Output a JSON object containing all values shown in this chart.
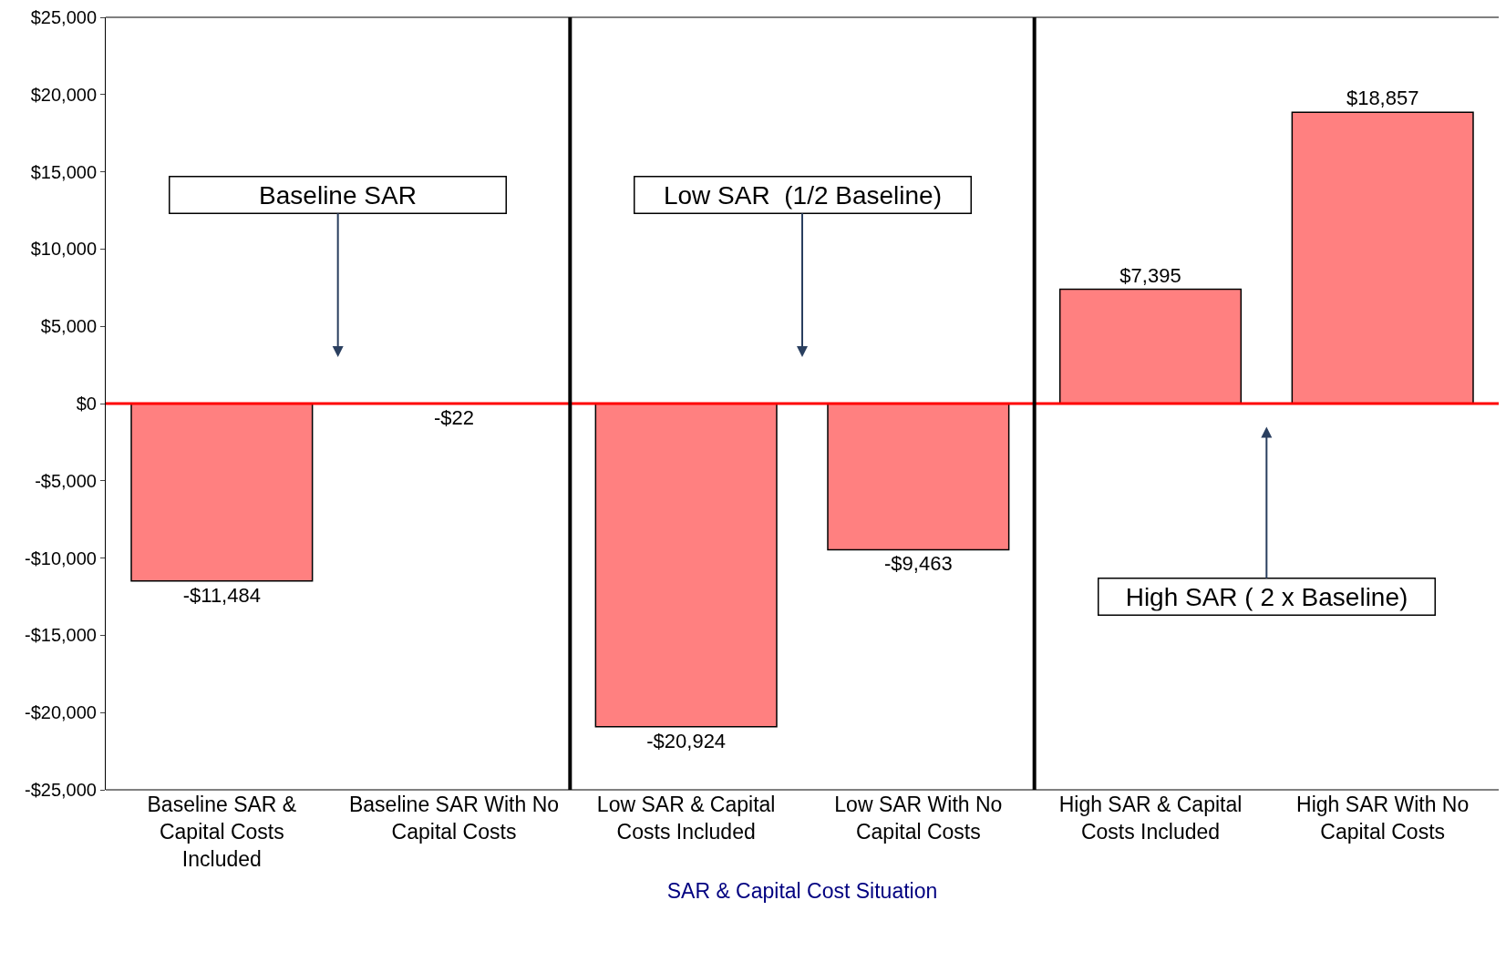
{
  "chart_data": {
    "type": "bar",
    "categories": [
      "Baseline SAR & Capital Costs Included",
      "Baseline SAR With No Capital Costs",
      "Low SAR & Capital Costs Included",
      "Low SAR With No Capital Costs",
      "High SAR & Capital Costs Included",
      "High SAR With No Capital Costs"
    ],
    "values": [
      -11484,
      -22,
      -20924,
      -9463,
      7395,
      18857
    ],
    "value_labels": [
      "-$11,484",
      "-$22",
      "-$20,924",
      "-$9,463",
      "$7,395",
      "$18,857"
    ],
    "color": "#ff8080",
    "xlabel": "SAR & Capital Cost Situation",
    "ylim": [
      -25000,
      25000
    ],
    "yticks": [
      {
        "value": -25000,
        "label": "-$25,000"
      },
      {
        "value": -20000,
        "label": "-$20,000"
      },
      {
        "value": -15000,
        "label": "-$15,000"
      },
      {
        "value": -10000,
        "label": "-$10,000"
      },
      {
        "value": -5000,
        "label": "-$5,000"
      },
      {
        "value": 0,
        "label": "$0"
      },
      {
        "value": 5000,
        "label": "$5,000"
      },
      {
        "value": 10000,
        "label": "$10,000"
      },
      {
        "value": 15000,
        "label": "$15,000"
      },
      {
        "value": 20000,
        "label": "$20,000"
      },
      {
        "value": 25000,
        "label": "$25,000"
      }
    ],
    "annotations": [
      "Baseline SAR",
      "Low SAR  (1/2 Baseline)",
      "High SAR ( 2 x Baseline)"
    ],
    "ref_lines": [
      {
        "axis": "y",
        "value": 0,
        "color": "#ff0000"
      }
    ],
    "legend": false
  }
}
